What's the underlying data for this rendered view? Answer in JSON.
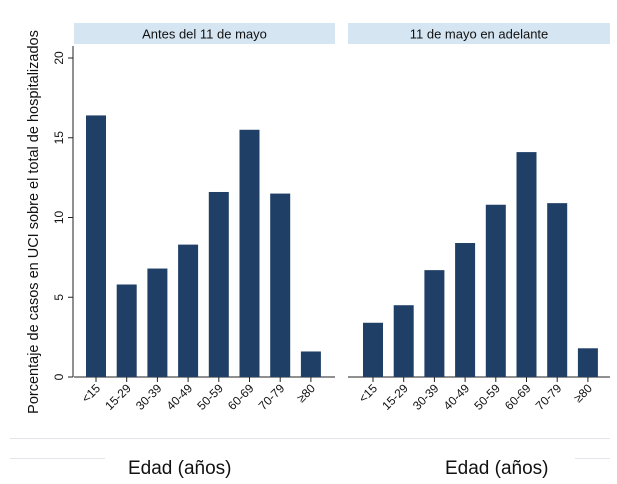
{
  "chart_data": {
    "type": "bar",
    "ylabel": "Porcentaje de casos en UCI sobre el total de hospitalizados",
    "xlabel": "Edad (años)",
    "ylim": [
      0,
      20
    ],
    "yticks": [
      0,
      5,
      10,
      15,
      20
    ],
    "grid": false,
    "bar_color": "#1f3f66",
    "panel_header_color": "#d5e5f1",
    "categories": [
      "<15",
      "15-29",
      "30-39",
      "40-49",
      "50-59",
      "60-69",
      "70-79",
      "≥80"
    ],
    "series": [
      {
        "name": "Antes del 11 de mayo",
        "values": [
          16.4,
          5.8,
          6.8,
          8.3,
          11.6,
          15.5,
          11.5,
          1.6
        ]
      },
      {
        "name": "11 de mayo en adelante",
        "values": [
          3.4,
          4.5,
          6.7,
          8.4,
          10.8,
          14.1,
          10.9,
          1.8
        ]
      }
    ]
  }
}
